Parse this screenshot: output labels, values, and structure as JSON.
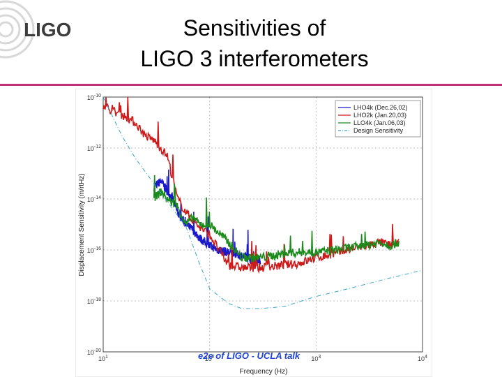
{
  "slide": {
    "title_line1": "Sensitivities of",
    "title_line2": "LIGO 3 interferometers",
    "footer": "e2e of LIGO - UCLA talk",
    "logo_text": "LIGO",
    "accent_color": "#c0307a",
    "footer_color": "#1f44d6"
  },
  "chart_data": {
    "type": "line",
    "xlabel": "Frequency (Hz)",
    "ylabel": "Displacement Sensitivity (m/rtHz)",
    "xscale": "log",
    "yscale": "log",
    "xlim": [
      10,
      10000
    ],
    "ylim": [
      1e-20,
      1e-10
    ],
    "grid": true,
    "legend_position": "top-right",
    "x_ticks": [
      {
        "value": 10,
        "label": "10^1"
      },
      {
        "value": 100,
        "label": "10^2"
      },
      {
        "value": 1000,
        "label": "10^3"
      },
      {
        "value": 10000,
        "label": "10^4"
      }
    ],
    "y_ticks": [
      {
        "value": 1e-10,
        "label": "10^-10"
      },
      {
        "value": 1e-12,
        "label": "10^-12"
      },
      {
        "value": 1e-14,
        "label": "10^-14"
      },
      {
        "value": 1e-16,
        "label": "10^-16"
      },
      {
        "value": 1e-18,
        "label": "10^-18"
      },
      {
        "value": 1e-20,
        "label": "10^-20"
      }
    ],
    "series": [
      {
        "name": "LHO4k (Dec.26,02)",
        "color": "#1a1acc",
        "style": "solid",
        "x": [
          30,
          35,
          40,
          45,
          50,
          60,
          70,
          80,
          90,
          100,
          120,
          150,
          200,
          250,
          300
        ],
        "y": [
          3e-14,
          5e-14,
          2e-14,
          1e-14,
          3e-15,
          1e-15,
          6e-16,
          3e-16,
          2e-16,
          1.5e-16,
          1e-16,
          8e-17,
          6e-17,
          4e-17,
          4e-17
        ]
      },
      {
        "name": "LHO2k (Jan.20,03)",
        "color": "#cc1a1a",
        "style": "solid",
        "x": [
          10,
          12,
          15,
          20,
          25,
          30,
          40,
          50,
          60,
          80,
          100,
          150,
          200,
          300,
          500,
          700,
          1000,
          1500,
          2000,
          3000,
          4000,
          5000,
          6000
        ],
        "y": [
          5e-11,
          3e-11,
          2e-11,
          1e-11,
          3e-12,
          2e-12,
          5e-13,
          1e-14,
          3e-15,
          8e-16,
          4e-16,
          2.5e-17,
          2e-17,
          2e-17,
          2.5e-17,
          3e-17,
          5e-17,
          7e-17,
          1e-16,
          1.5e-16,
          2e-16,
          1.5e-16,
          2e-16
        ]
      },
      {
        "name": "LLO4k (Jan.06,03)",
        "color": "#1a8a1a",
        "style": "solid",
        "x": [
          30,
          35,
          40,
          50,
          60,
          70,
          80,
          100,
          120,
          150,
          200,
          300,
          400,
          500,
          700,
          1000,
          1500,
          2000,
          3000,
          4000,
          5000,
          6000
        ],
        "y": [
          1e-14,
          2e-14,
          1e-14,
          5e-15,
          1e-15,
          2e-15,
          1e-15,
          1e-15,
          5e-16,
          2e-16,
          5e-17,
          5e-17,
          6e-17,
          7e-17,
          8e-17,
          8e-17,
          1e-16,
          1.2e-16,
          1.5e-16,
          2e-16,
          1.5e-16,
          2e-16
        ]
      },
      {
        "name": "Design Sensitivity",
        "color": "#3aa5c8",
        "style": "dashdot",
        "x": [
          10,
          15,
          20,
          30,
          40,
          60,
          80,
          100,
          150,
          200,
          300,
          500,
          1000,
          2000,
          5000,
          10000
        ],
        "y": [
          1e-10,
          3e-12,
          4e-13,
          4e-14,
          8e-15,
          8e-16,
          3e-17,
          3e-18,
          8e-19,
          5e-19,
          5e-19,
          6e-19,
          1.5e-18,
          3e-18,
          8e-18,
          1.6e-17
        ]
      }
    ]
  }
}
